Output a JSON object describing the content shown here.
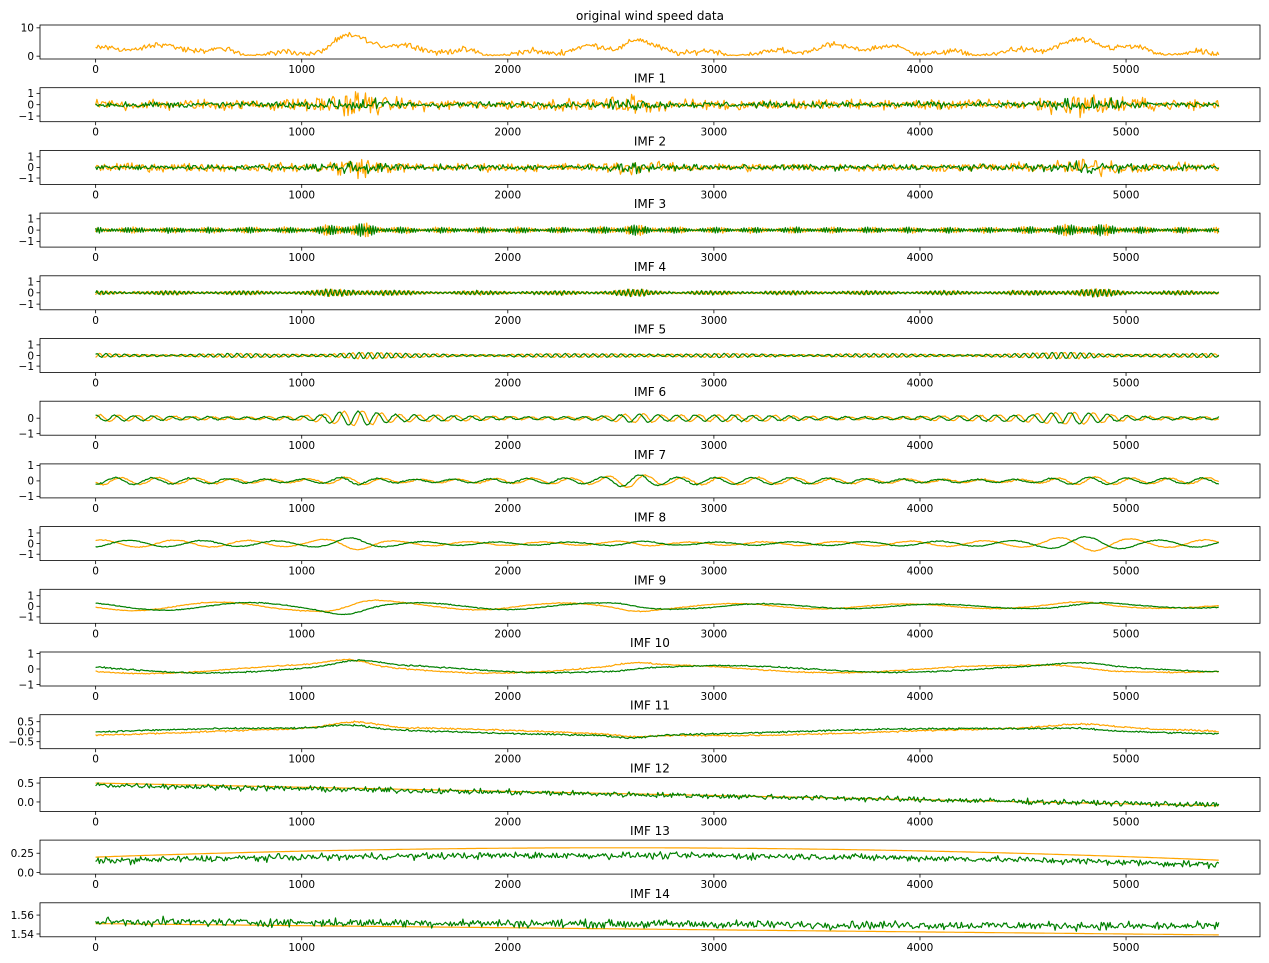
{
  "figure": {
    "x_ticks": [
      0,
      1000,
      2000,
      3000,
      4000,
      5000
    ],
    "x_range": [
      -270,
      5650
    ],
    "n_points": 5450
  },
  "colors": {
    "original": "#FFA500",
    "reconstructed": "#008000"
  },
  "chart_data": [
    {
      "type": "line",
      "title": "original wind speed data",
      "yticks": [
        0,
        10
      ],
      "ylim": [
        -1,
        11
      ],
      "series": [
        {
          "color": "#FFA500",
          "gen": "wind"
        }
      ]
    },
    {
      "type": "line",
      "title": "IMF 1",
      "yticks": [
        -1,
        0,
        1
      ],
      "ylim": [
        -1.5,
        1.5
      ],
      "series": [
        {
          "color": "#FFA500",
          "gen": "noise",
          "amp": 0.55
        },
        {
          "color": "#008000",
          "gen": "noise",
          "amp": 0.3
        }
      ]
    },
    {
      "type": "line",
      "title": "IMF 2",
      "yticks": [
        -1,
        0,
        1
      ],
      "ylim": [
        -1.6,
        1.6
      ],
      "series": [
        {
          "color": "#FFA500",
          "gen": "noise",
          "amp": 0.45
        },
        {
          "color": "#008000",
          "gen": "noise",
          "amp": 0.3
        }
      ]
    },
    {
      "type": "line",
      "title": "IMF 3",
      "yticks": [
        -1,
        0,
        1
      ],
      "ylim": [
        -1.5,
        1.5
      ],
      "series": [
        {
          "color": "#FFA500",
          "gen": "osc",
          "amp": 0.45,
          "freq": 0.09
        },
        {
          "color": "#008000",
          "gen": "osc",
          "amp": 0.42,
          "freq": 0.09
        }
      ]
    },
    {
      "type": "line",
      "title": "IMF 4",
      "yticks": [
        -1,
        0,
        1
      ],
      "ylim": [
        -1.5,
        1.5
      ],
      "series": [
        {
          "color": "#FFA500",
          "gen": "osc",
          "amp": 0.3,
          "freq": 0.045
        },
        {
          "color": "#008000",
          "gen": "osc",
          "amp": 0.3,
          "freq": 0.045
        }
      ]
    },
    {
      "type": "line",
      "title": "IMF 5",
      "yticks": [
        -1,
        0,
        1
      ],
      "ylim": [
        -1.6,
        1.6
      ],
      "series": [
        {
          "color": "#FFA500",
          "gen": "osc",
          "amp": 0.3,
          "freq": 0.022
        },
        {
          "color": "#008000",
          "gen": "osc",
          "amp": 0.3,
          "freq": 0.022
        }
      ]
    },
    {
      "type": "line",
      "title": "IMF 6",
      "yticks": [
        -1,
        0
      ],
      "ylim": [
        -1.1,
        1.1
      ],
      "series": [
        {
          "color": "#FFA500",
          "gen": "osc",
          "amp": 0.35,
          "freq": 0.011
        },
        {
          "color": "#008000",
          "gen": "osc",
          "amp": 0.33,
          "freq": 0.011
        }
      ]
    },
    {
      "type": "line",
      "title": "IMF 7",
      "yticks": [
        -1,
        0,
        1
      ],
      "ylim": [
        -1.1,
        1.1
      ],
      "series": [
        {
          "color": "#FFA500",
          "gen": "osc",
          "amp": 0.4,
          "freq": 0.0055
        },
        {
          "color": "#008000",
          "gen": "osc",
          "amp": 0.38,
          "freq": 0.0055
        }
      ]
    },
    {
      "type": "line",
      "title": "IMF 8",
      "yticks": [
        -1,
        0,
        1
      ],
      "ylim": [
        -1.6,
        1.6
      ],
      "series": [
        {
          "color": "#FFA500",
          "gen": "osc",
          "amp": 0.6,
          "freq": 0.0028
        },
        {
          "color": "#008000",
          "gen": "osc",
          "amp": 0.55,
          "freq": 0.0028
        }
      ]
    },
    {
      "type": "line",
      "title": "IMF 9",
      "yticks": [
        -1,
        0,
        1
      ],
      "ylim": [
        -1.6,
        1.6
      ],
      "series": [
        {
          "color": "#FFA500",
          "gen": "osc",
          "amp": 0.7,
          "freq": 0.0012
        },
        {
          "color": "#008000",
          "gen": "osc",
          "amp": 0.65,
          "freq": 0.0012
        }
      ]
    },
    {
      "type": "line",
      "title": "IMF 10",
      "yticks": [
        -1,
        0,
        1
      ],
      "ylim": [
        -1.1,
        1.1
      ],
      "series": [
        {
          "color": "#FFA500",
          "gen": "osc",
          "amp": 0.5,
          "freq": 0.0006
        },
        {
          "color": "#008000",
          "gen": "osc",
          "amp": 0.45,
          "freq": 0.0006
        }
      ]
    },
    {
      "type": "line",
      "title": "IMF 11",
      "yticks": [
        0.5,
        0.0,
        -0.5
      ],
      "ylim": [
        -0.85,
        0.85
      ],
      "series": [
        {
          "color": "#FFA500",
          "gen": "osc",
          "amp": 0.35,
          "freq": 0.0003
        },
        {
          "color": "#008000",
          "gen": "osc",
          "amp": 0.3,
          "freq": 0.0003
        }
      ]
    },
    {
      "type": "line",
      "title": "IMF 12",
      "yticks": [
        0.5,
        0.0
      ],
      "ylim": [
        -0.25,
        0.65
      ],
      "series": [
        {
          "color": "#FFA500",
          "gen": "trend",
          "from": 0.5,
          "to": -0.1
        },
        {
          "color": "#008000",
          "gen": "trend",
          "from": 0.45,
          "to": -0.08,
          "noise": 0.05
        }
      ]
    },
    {
      "type": "line",
      "title": "IMF 13",
      "yticks": [
        0.25,
        0.0
      ],
      "ylim": [
        -0.02,
        0.42
      ],
      "series": [
        {
          "color": "#FFA500",
          "gen": "arc",
          "from": 0.2,
          "peak": 0.32,
          "to": 0.16
        },
        {
          "color": "#008000",
          "gen": "arc",
          "from": 0.15,
          "peak": 0.22,
          "to": 0.1,
          "noise": 0.03
        }
      ]
    },
    {
      "type": "line",
      "title": "IMF 14",
      "yticks": [
        1.56,
        1.54
      ],
      "ylim": [
        1.537,
        1.573
      ],
      "series": [
        {
          "color": "#FFA500",
          "gen": "trend",
          "from": 1.551,
          "to": 1.539
        },
        {
          "color": "#008000",
          "gen": "trend",
          "from": 1.553,
          "to": 1.548,
          "noise": 0.003
        }
      ]
    }
  ]
}
